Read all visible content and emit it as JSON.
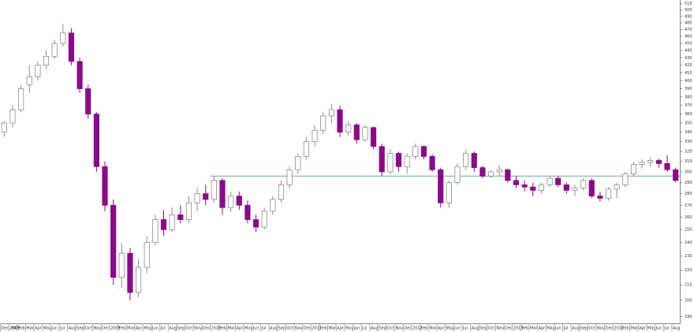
{
  "chart_data": {
    "type": "candlestick",
    "categories": [
      "Dec 2007",
      "2008",
      "Feb",
      "Mar",
      "Apr",
      "May",
      "Jun",
      "Jul",
      "Aug",
      "Sep",
      "Oct",
      "Nov",
      "Dec",
      "2009",
      "Feb",
      "Mar",
      "Apr",
      "May",
      "Jun",
      "Jul",
      "Aug",
      "Sep",
      "Oct",
      "Nov",
      "Dec",
      "2010",
      "Feb",
      "Mar",
      "Apr",
      "May",
      "Jun",
      "Jul",
      "Aug",
      "Sep",
      "Oct",
      "Nov",
      "Dec",
      "2011",
      "Feb",
      "Mar",
      "Apr",
      "May",
      "Jun",
      "Jul",
      "Aug",
      "Sep",
      "Oct",
      "Nov",
      "Dec",
      "2012",
      "Feb",
      "Mar",
      "Apr",
      "May",
      "Jun",
      "Jul",
      "Aug",
      "Sep",
      "Oct",
      "Nov",
      "Dec",
      "2013",
      "Feb",
      "Mar",
      "Apr",
      "May",
      "Jun",
      "Jul",
      "Aug",
      "Sep",
      "Oct",
      "Nov",
      "Dec",
      "2014",
      "Feb",
      "Mar",
      "Apr",
      "May",
      "Jun",
      "Jul",
      "Aug"
    ],
    "open": [
      340,
      350,
      365,
      395,
      405,
      420,
      432,
      450,
      465,
      425,
      390,
      360,
      305,
      270,
      215,
      232,
      205,
      222,
      240,
      258,
      250,
      262,
      258,
      272,
      280,
      275,
      292,
      268,
      278,
      270,
      258,
      252,
      265,
      275,
      288,
      302,
      315,
      330,
      342,
      358,
      365,
      340,
      348,
      332,
      345,
      325,
      300,
      318,
      305,
      315,
      325,
      315,
      302,
      272,
      290,
      305,
      318,
      304,
      296,
      300,
      302,
      292,
      288,
      286,
      283,
      288,
      294,
      288,
      283,
      285,
      292,
      278,
      276,
      284,
      288,
      298,
      307,
      309,
      311,
      308,
      302
    ],
    "high": [
      352,
      370,
      395,
      420,
      425,
      440,
      455,
      478,
      472,
      430,
      395,
      362,
      310,
      275,
      240,
      236,
      228,
      245,
      262,
      266,
      268,
      270,
      278,
      285,
      288,
      296,
      294,
      282,
      282,
      274,
      262,
      268,
      278,
      292,
      305,
      318,
      335,
      348,
      362,
      372,
      370,
      352,
      350,
      348,
      346,
      328,
      322,
      320,
      318,
      328,
      326,
      317,
      304,
      292,
      308,
      322,
      320,
      306,
      302,
      306,
      303,
      296,
      292,
      290,
      290,
      296,
      296,
      290,
      288,
      294,
      294,
      282,
      286,
      290,
      300,
      310,
      312,
      314,
      313,
      316,
      304
    ],
    "low": [
      335,
      345,
      362,
      385,
      400,
      415,
      428,
      445,
      420,
      385,
      355,
      300,
      265,
      210,
      208,
      200,
      202,
      218,
      238,
      245,
      248,
      255,
      255,
      265,
      270,
      272,
      262,
      264,
      266,
      255,
      248,
      250,
      262,
      272,
      285,
      298,
      312,
      325,
      338,
      350,
      335,
      336,
      328,
      330,
      322,
      296,
      298,
      300,
      298,
      312,
      312,
      300,
      268,
      268,
      288,
      302,
      300,
      294,
      294,
      296,
      290,
      285,
      282,
      278,
      280,
      286,
      286,
      280,
      278,
      283,
      276,
      273,
      274,
      276,
      286,
      296,
      303,
      305,
      304,
      300,
      290
    ],
    "close": [
      350,
      365,
      390,
      405,
      420,
      432,
      450,
      465,
      425,
      390,
      360,
      305,
      270,
      215,
      232,
      205,
      222,
      240,
      258,
      250,
      262,
      258,
      272,
      280,
      275,
      292,
      268,
      278,
      270,
      258,
      252,
      265,
      275,
      288,
      302,
      315,
      330,
      342,
      358,
      365,
      340,
      348,
      332,
      345,
      325,
      300,
      318,
      305,
      315,
      325,
      315,
      302,
      272,
      290,
      305,
      318,
      304,
      296,
      300,
      302,
      292,
      288,
      286,
      283,
      288,
      294,
      288,
      283,
      285,
      292,
      278,
      276,
      284,
      288,
      298,
      307,
      309,
      311,
      308,
      302,
      292
    ],
    "up_color": "#ffffff",
    "up_outline": "#8c8c8c",
    "down_color": "#8b0a8b",
    "ylim": [
      186,
      516
    ],
    "log_scale": true,
    "yticks": [
      190,
      200,
      210,
      220,
      230,
      240,
      250,
      260,
      270,
      280,
      290,
      300,
      310,
      320,
      330,
      340,
      350,
      360,
      370,
      380,
      390,
      400,
      410,
      420,
      430,
      440,
      450,
      460,
      470,
      480,
      490,
      500,
      510
    ],
    "reference_line": {
      "value": 296,
      "from": "2010",
      "color": "#5fb3a0"
    }
  }
}
